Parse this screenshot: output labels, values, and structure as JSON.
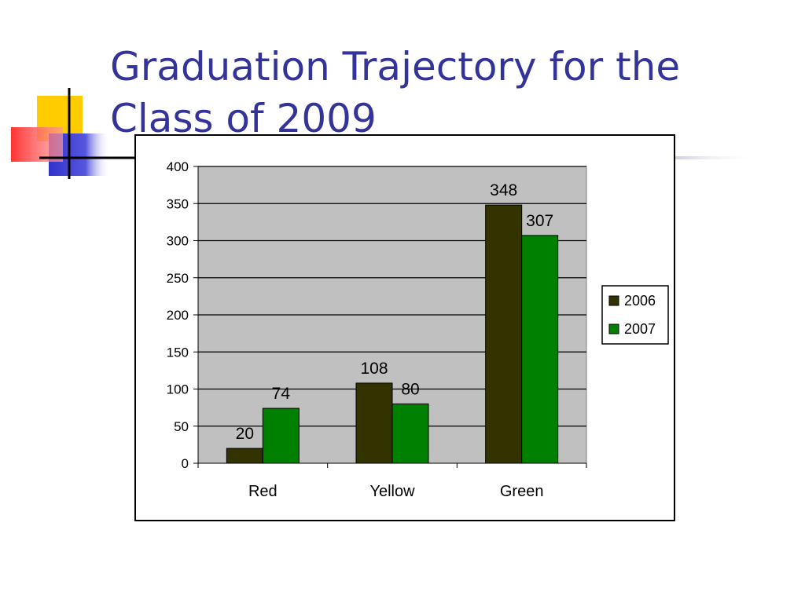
{
  "slide": {
    "title_line1": "Graduation Trajectory for the",
    "title_line2": "Class of 2009",
    "title_color": "#333399"
  },
  "chart_data": {
    "type": "bar",
    "categories": [
      "Red",
      "Yellow",
      "Green"
    ],
    "series": [
      {
        "name": "2006",
        "values": [
          20,
          108,
          348
        ],
        "color": "#333300"
      },
      {
        "name": "2007",
        "values": [
          74,
          80,
          307
        ],
        "color": "#008000"
      }
    ],
    "ylim": [
      0,
      400
    ],
    "yticks": [
      0,
      50,
      100,
      150,
      200,
      250,
      300,
      350,
      400
    ],
    "grid": true,
    "plot_background": "#c0c0c0",
    "legend_position": "right",
    "data_labels": true
  }
}
